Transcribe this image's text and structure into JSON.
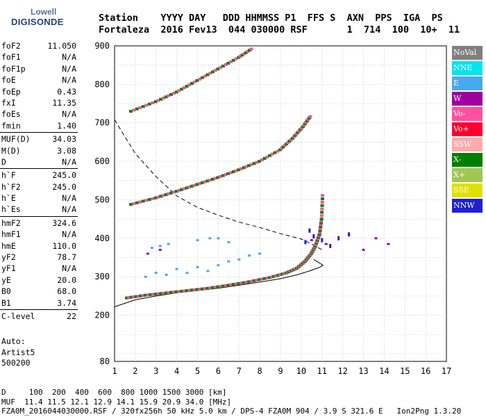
{
  "logo": {
    "line1": "Lowell",
    "line2": "DIGISONDE"
  },
  "header": {
    "labels": "Station    YYYY DAY   DDD HHMMSS P1  FFS S  AXN  PPS  IGA  PS",
    "values": "Fortaleza  2016 Fev13  044 030000 RSF       1  714  100  10+  11"
  },
  "params_groups": [
    [
      [
        "foF2",
        "11.050"
      ],
      [
        "foF1",
        "N/A"
      ],
      [
        "foF1p",
        "N/A"
      ],
      [
        "foE",
        "N/A"
      ],
      [
        "foEp",
        "0.43"
      ],
      [
        "fxI",
        "11.35"
      ],
      [
        "foEs",
        "N/A"
      ],
      [
        "fmin",
        "1.40"
      ]
    ],
    [
      [
        "MUF(D)",
        "34.03"
      ],
      [
        "M(D)",
        "3.08"
      ],
      [
        "D",
        "N/A"
      ]
    ],
    [
      [
        "h`F",
        "245.0"
      ],
      [
        "h`F2",
        "245.0"
      ],
      [
        "h`E",
        "N/A"
      ],
      [
        "h`Es",
        "N/A"
      ]
    ],
    [
      [
        "hmF2",
        "324.6"
      ],
      [
        "hmF1",
        "N/A"
      ],
      [
        "hmE",
        "110.0"
      ],
      [
        "yF2",
        "78.7"
      ],
      [
        "yF1",
        "N/A"
      ],
      [
        "yE",
        "20.0"
      ],
      [
        "B0",
        "68.0"
      ],
      [
        "B1",
        "3.74"
      ]
    ],
    [
      [
        "C-level",
        "22"
      ]
    ]
  ],
  "auto_lines": [
    "Auto:",
    "Artist5",
    "500200"
  ],
  "legend": [
    {
      "name": "NoVal",
      "color": "#808080"
    },
    {
      "name": "NNE",
      "color": "#00e5ee"
    },
    {
      "name": "E",
      "color": "#4aa8ee"
    },
    {
      "name": "W",
      "color": "#a000a0"
    },
    {
      "name": "Vo-",
      "color": "#ff50a0"
    },
    {
      "name": "Vo+",
      "color": "#ff0030"
    },
    {
      "name": "SSW",
      "color": "#ffaaaa"
    },
    {
      "name": "X-",
      "color": "#008000"
    },
    {
      "name": "X+",
      "color": "#a0c850"
    },
    {
      "name": "SSE",
      "color": "#e0e000"
    },
    {
      "name": "NNW",
      "color": "#2020d0"
    }
  ],
  "footer": {
    "line1": "D     100  200  400  600  800 1000 1500 3000 [km]",
    "line2": "MUF  11.4 11.5 12.1 12.9 14.1 15.9 20.9 34.0 [MHz]",
    "line3": "FZA0M_2016044030000.RSF / 320fx256h 50 kHz 5.0 km / DPS-4 FZA0M 904 / 3.9 S 321.6 E   Ion2Png 1.3.20"
  },
  "chart_data": {
    "type": "scatter",
    "xlim": [
      1,
      17
    ],
    "ylim": [
      80,
      900
    ],
    "xticks": [
      1,
      2,
      3,
      4,
      5,
      6,
      7,
      8,
      9,
      10,
      11,
      12,
      13,
      14,
      15,
      16,
      17
    ],
    "yticks": [
      80,
      200,
      300,
      400,
      500,
      600,
      700,
      800,
      900
    ],
    "xlabel": "",
    "ylabel": "",
    "grid": true,
    "traces": {
      "o_trace_F": [
        [
          1.6,
          245
        ],
        [
          2.5,
          252
        ],
        [
          3.5,
          258
        ],
        [
          4.5,
          264
        ],
        [
          5.5,
          270
        ],
        [
          6.5,
          278
        ],
        [
          7.5,
          287
        ],
        [
          8.5,
          298
        ],
        [
          9.3,
          310
        ],
        [
          9.8,
          322
        ],
        [
          10.2,
          340
        ],
        [
          10.5,
          360
        ],
        [
          10.7,
          380
        ],
        [
          10.9,
          410
        ],
        [
          11.0,
          450
        ],
        [
          11.05,
          520
        ]
      ],
      "multi_2F": [
        [
          1.8,
          488
        ],
        [
          3.0,
          505
        ],
        [
          4.0,
          522
        ],
        [
          5.0,
          540
        ],
        [
          6.0,
          558
        ],
        [
          7.0,
          578
        ],
        [
          8.0,
          600
        ],
        [
          9.0,
          630
        ],
        [
          9.6,
          660
        ],
        [
          10.1,
          690
        ],
        [
          10.5,
          720
        ]
      ],
      "multi_3F": [
        [
          1.8,
          730
        ],
        [
          3.0,
          755
        ],
        [
          4.0,
          780
        ],
        [
          5.0,
          810
        ],
        [
          6.0,
          840
        ],
        [
          7.0,
          870
        ],
        [
          7.7,
          895
        ]
      ],
      "scatter_E": [
        [
          2.5,
          300
        ],
        [
          3.0,
          310
        ],
        [
          3.5,
          305
        ],
        [
          4.0,
          320
        ],
        [
          4.5,
          310
        ],
        [
          5.0,
          325
        ],
        [
          5.5,
          315
        ],
        [
          6.0,
          330
        ],
        [
          6.5,
          340
        ],
        [
          7.0,
          345
        ],
        [
          7.5,
          355
        ],
        [
          8.0,
          360
        ],
        [
          2.8,
          375
        ],
        [
          3.2,
          380
        ],
        [
          3.6,
          385
        ],
        [
          5.0,
          395
        ],
        [
          5.6,
          400
        ],
        [
          6.0,
          400
        ],
        [
          6.5,
          390
        ]
      ],
      "scatter_W": [
        [
          2.6,
          360
        ],
        [
          3.2,
          370
        ],
        [
          10.5,
          395
        ],
        [
          11.2,
          385
        ],
        [
          13.0,
          370
        ],
        [
          13.6,
          400
        ],
        [
          14.2,
          385
        ]
      ],
      "scatter_NNW": [
        [
          10.2,
          390
        ],
        [
          10.6,
          405
        ],
        [
          11.0,
          395
        ],
        [
          11.4,
          380
        ],
        [
          11.8,
          400
        ],
        [
          12.3,
          410
        ],
        [
          10.4,
          420
        ]
      ],
      "profile_solid": [
        [
          1.0,
          222
        ],
        [
          2.0,
          240
        ],
        [
          3.0,
          250
        ],
        [
          4.0,
          258
        ],
        [
          5.0,
          264
        ],
        [
          6.0,
          270
        ],
        [
          7.0,
          278
        ],
        [
          8.0,
          286
        ],
        [
          9.0,
          295
        ],
        [
          9.8,
          305
        ],
        [
          10.4,
          315
        ],
        [
          10.9,
          325
        ],
        [
          11.05,
          330
        ],
        [
          10.9,
          335
        ],
        [
          10.6,
          345
        ]
      ],
      "profile_dashed": [
        [
          1.0,
          708
        ],
        [
          2.0,
          620
        ],
        [
          3.0,
          560
        ],
        [
          4.0,
          510
        ],
        [
          5.0,
          480
        ],
        [
          6.0,
          460
        ],
        [
          7.0,
          442
        ],
        [
          8.0,
          428
        ],
        [
          9.0,
          412
        ],
        [
          10.0,
          398
        ],
        [
          10.5,
          385
        ],
        [
          11.0,
          370
        ]
      ]
    }
  }
}
